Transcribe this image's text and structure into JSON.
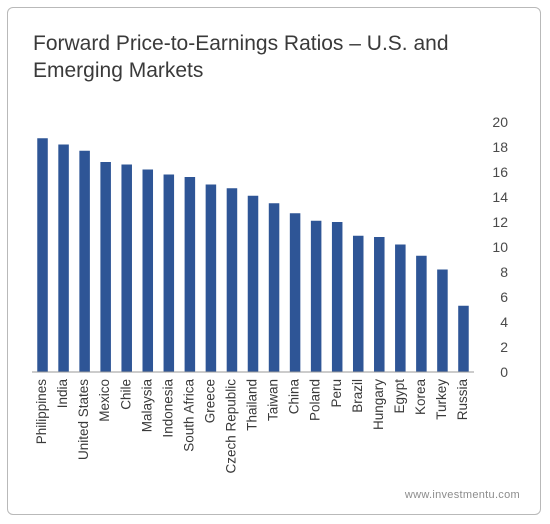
{
  "title": "Forward Price-to-Earnings Ratios – U.S. and Emerging Markets",
  "footer": "www.investmentu.com",
  "colors": {
    "bar": "#2e5596",
    "axis": "#999999"
  },
  "chart_data": {
    "type": "bar",
    "title": "Forward Price-to-Earnings Ratios – U.S. and Emerging Markets",
    "categories": [
      "Philippines",
      "India",
      "United States",
      "Mexico",
      "Chile",
      "Malaysia",
      "Indonesia",
      "South Africa",
      "Greece",
      "Czech Republic",
      "Thailand",
      "Taiwan",
      "China",
      "Poland",
      "Peru",
      "Brazil",
      "Hungary",
      "Egypt",
      "Korea",
      "Turkey",
      "Russia"
    ],
    "values": [
      18.7,
      18.2,
      17.7,
      16.8,
      16.6,
      16.2,
      15.8,
      15.6,
      15.0,
      14.7,
      14.1,
      13.5,
      12.7,
      12.1,
      12.0,
      10.9,
      10.8,
      10.2,
      9.3,
      8.2,
      5.3
    ],
    "ylim": [
      0,
      20
    ],
    "yticks": [
      0,
      2,
      4,
      6,
      8,
      10,
      12,
      14,
      16,
      18,
      20
    ],
    "y_axis_side": "right",
    "grid": false,
    "legend": "none"
  }
}
